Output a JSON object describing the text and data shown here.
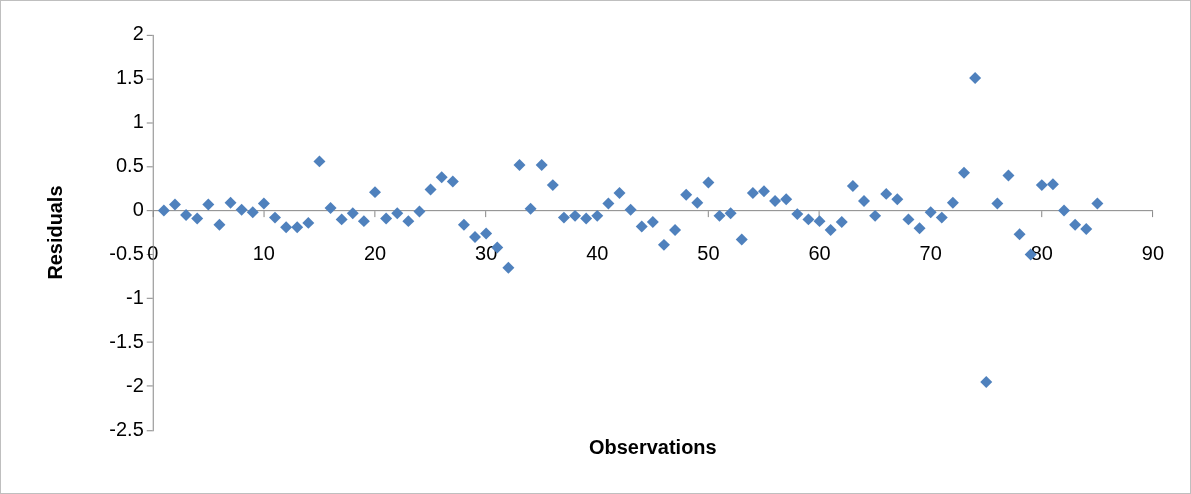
{
  "chart_data": {
    "type": "scatter",
    "xlabel": "Observations",
    "ylabel": "Residuals",
    "marker": "diamond",
    "grid": false,
    "legend": false,
    "xlim": [
      0,
      90
    ],
    "xticks": [
      0,
      10,
      20,
      30,
      40,
      50,
      60,
      70,
      80,
      90
    ],
    "ylim": [
      -2.5,
      2
    ],
    "yticks": [
      -2.5,
      -2,
      -1.5,
      -1,
      -0.5,
      0,
      0.5,
      1,
      1.5,
      2
    ],
    "x": [
      1,
      2,
      3,
      4,
      5,
      6,
      7,
      8,
      9,
      10,
      11,
      12,
      13,
      14,
      15,
      16,
      17,
      18,
      19,
      20,
      21,
      22,
      23,
      24,
      25,
      26,
      27,
      28,
      29,
      30,
      31,
      32,
      33,
      34,
      35,
      36,
      37,
      38,
      39,
      40,
      41,
      42,
      43,
      44,
      45,
      46,
      47,
      48,
      49,
      50,
      51,
      52,
      53,
      54,
      55,
      56,
      57,
      58,
      59,
      60,
      61,
      62,
      63,
      64,
      65,
      66,
      67,
      68,
      69,
      70,
      71,
      72,
      73,
      74,
      75,
      76,
      77,
      78,
      79,
      80,
      81,
      82,
      83,
      84,
      85
    ],
    "series": [
      {
        "color": "#4f81bd",
        "values": [
          0.0,
          0.07,
          -0.05,
          -0.09,
          0.07,
          -0.16,
          0.09,
          0.01,
          -0.02,
          0.08,
          -0.08,
          -0.19,
          -0.19,
          -0.14,
          0.56,
          0.03,
          -0.1,
          -0.03,
          -0.12,
          0.21,
          -0.09,
          -0.03,
          -0.12,
          -0.01,
          0.24,
          0.38,
          0.33,
          -0.16,
          -0.3,
          -0.26,
          -0.42,
          -0.65,
          0.52,
          0.02,
          0.52,
          0.29,
          -0.08,
          -0.06,
          -0.09,
          -0.06,
          0.08,
          0.2,
          0.01,
          -0.18,
          -0.13,
          -0.39,
          -0.22,
          0.18,
          0.09,
          0.32,
          -0.06,
          -0.03,
          -0.33,
          0.2,
          0.22,
          0.11,
          0.13,
          -0.04,
          -0.1,
          -0.12,
          -0.22,
          -0.13,
          0.28,
          0.11,
          -0.06,
          0.19,
          0.13,
          -0.1,
          -0.2,
          -0.02,
          -0.08,
          0.09,
          0.43,
          1.51,
          -1.95,
          0.08,
          0.4,
          -0.27,
          -0.5,
          0.29,
          0.3,
          0.0,
          -0.16,
          -0.21,
          0.08
        ]
      }
    ]
  }
}
